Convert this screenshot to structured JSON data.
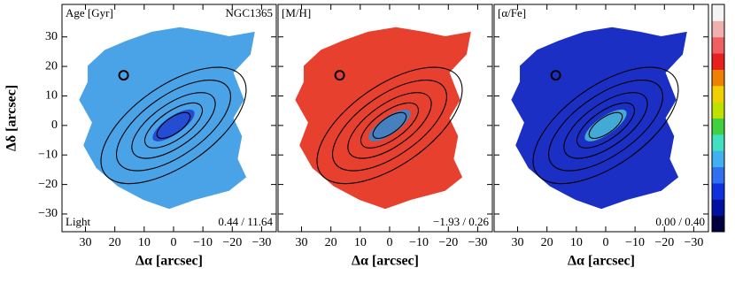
{
  "chart_data": [
    {
      "type": "map",
      "title": "Age [Gyr]",
      "object": "NGC1365",
      "note": "Light",
      "range_label": "0.44 / 11.64",
      "color": "#4aa3e6",
      "core_color": "#1e3ed0",
      "xlabel": "Δα [arcsec]",
      "ylabel": "Δδ [arcsec]",
      "xlim": [
        38,
        -35
      ],
      "ylim": [
        -36,
        41
      ],
      "xticks": [
        30,
        20,
        10,
        0,
        {
          "value": -10,
          "label": "−10"
        },
        {
          "value": -20,
          "label": "−20"
        },
        {
          "value": -30,
          "label": "−30"
        }
      ],
      "yticks": [
        {
          "value": -30,
          "label": "−30"
        },
        {
          "value": -20,
          "label": "−20"
        },
        {
          "value": -10,
          "label": "−10"
        },
        0,
        10,
        20,
        30
      ]
    },
    {
      "type": "map",
      "title": "[M/H]",
      "range_label": "−1.93 / 0.26",
      "color": "#e8402f",
      "core_color": "#2a8cd8",
      "xlabel": "Δα [arcsec]",
      "xlim": [
        38,
        -35
      ],
      "ylim": [
        -36,
        41
      ],
      "xticks": [
        30,
        20,
        10,
        0,
        {
          "value": -10,
          "label": "−10"
        },
        {
          "value": -20,
          "label": "−20"
        },
        {
          "value": -30,
          "label": "−30"
        }
      ],
      "yticks": [
        -30,
        -20,
        -10,
        0,
        10,
        20,
        30
      ]
    },
    {
      "type": "map",
      "title": "[α/Fe]",
      "range_label": "0.00 / 0.40",
      "color": "#1b2fc4",
      "core_color": "#49c0d8",
      "xlabel": "Δα [arcsec]",
      "xlim": [
        38,
        -35
      ],
      "ylim": [
        -36,
        41
      ],
      "xticks": [
        30,
        20,
        10,
        0,
        {
          "value": -10,
          "label": "−10"
        },
        {
          "value": -20,
          "label": "−20"
        },
        {
          "value": -30,
          "label": "−30"
        }
      ],
      "yticks": [
        -30,
        -20,
        -10,
        0,
        10,
        20,
        30
      ],
      "colorbar": [
        "#000040",
        "#0010a0",
        "#1030e0",
        "#3070f0",
        "#40b0f0",
        "#40e0c0",
        "#40d040",
        "#c0e000",
        "#f0d000",
        "#f08000",
        "#e82020",
        "#f06060",
        "#f0b0b0",
        "#f4f4f4"
      ]
    }
  ]
}
